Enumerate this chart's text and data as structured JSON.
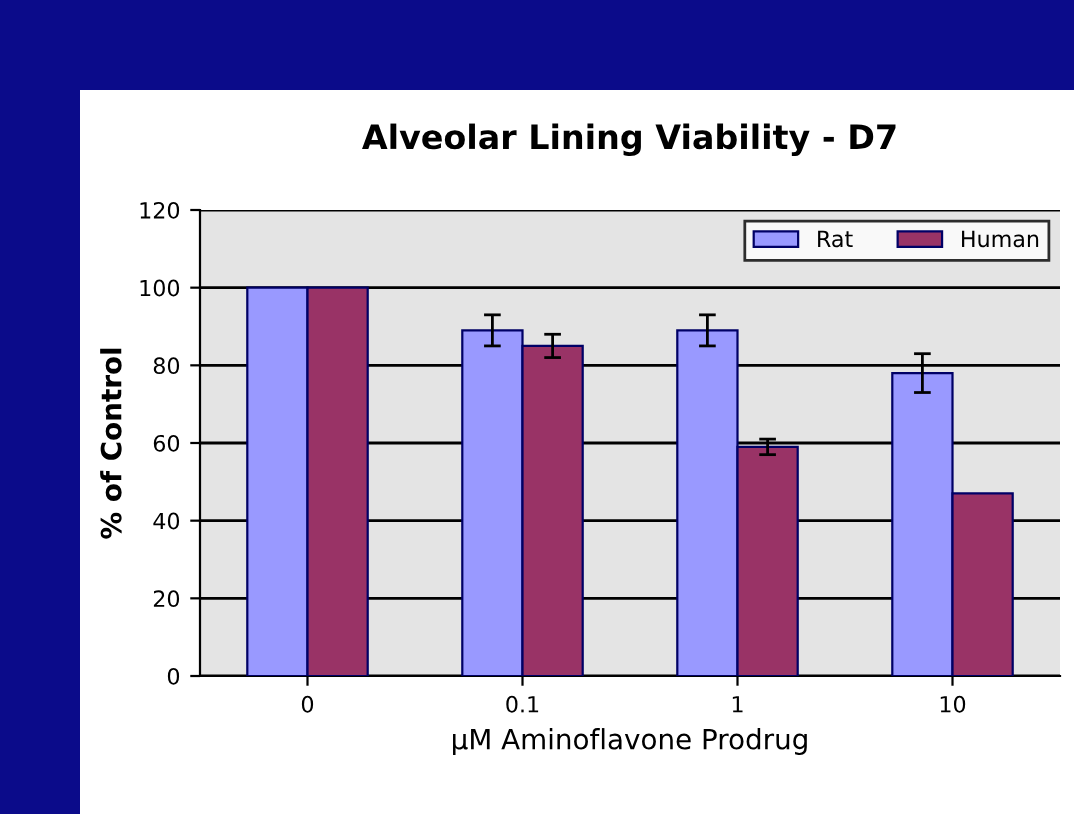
{
  "chart_data": {
    "type": "bar",
    "title": "Alveolar Lining Viability - D7",
    "xlabel": "µM Aminoflavone Prodrug",
    "ylabel": "% of Control",
    "categories": [
      "0",
      "0.1",
      "1",
      "10"
    ],
    "series": [
      {
        "name": "Rat",
        "color": "#9999ff",
        "values": [
          100,
          89,
          89,
          78
        ],
        "errors": [
          null,
          4,
          4,
          5
        ]
      },
      {
        "name": "Human",
        "color": "#993366",
        "values": [
          100,
          85,
          59,
          47
        ],
        "errors": [
          null,
          3,
          2,
          null
        ]
      }
    ],
    "ylim": [
      0,
      120
    ],
    "yticks": [
      0,
      20,
      40,
      60,
      80,
      100,
      120
    ],
    "grid": "y",
    "legend": "top right"
  }
}
